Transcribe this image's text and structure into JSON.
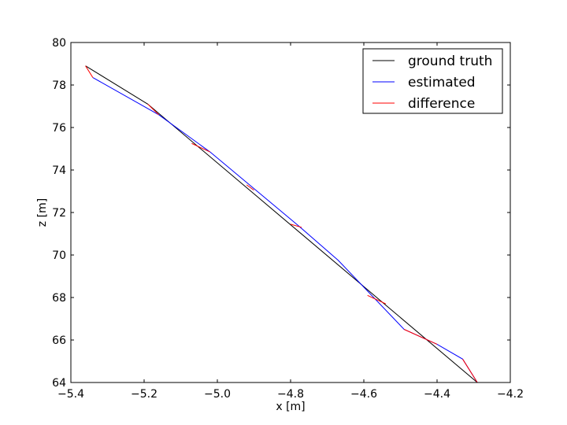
{
  "chart_data": {
    "type": "line",
    "xlabel": "x [m]",
    "ylabel": "z [m]",
    "xlim": [
      -5.4,
      -4.2
    ],
    "ylim": [
      64,
      80
    ],
    "x_ticks": [
      -5.4,
      -5.2,
      -5.0,
      -4.8,
      -4.6,
      -4.4,
      -4.2
    ],
    "x_tick_labels": [
      "−5.4",
      "−5.2",
      "−5.0",
      "−4.8",
      "−4.6",
      "−4.4",
      "−4.2"
    ],
    "y_ticks": [
      64,
      66,
      68,
      70,
      72,
      74,
      76,
      78,
      80
    ],
    "y_tick_labels": [
      "64",
      "66",
      "68",
      "70",
      "72",
      "74",
      "76",
      "78",
      "80"
    ],
    "grid": false,
    "legend_position": "top-right",
    "series": [
      {
        "name": "ground truth",
        "color": "#000000",
        "points": [
          [
            -5.36,
            78.9
          ],
          [
            -5.19,
            77.1
          ],
          [
            -4.29,
            64.0
          ]
        ]
      },
      {
        "name": "estimated",
        "color": "#0000ff",
        "points": [
          [
            -5.34,
            78.35
          ],
          [
            -5.16,
            76.6
          ],
          [
            -5.02,
            74.85
          ],
          [
            -4.78,
            71.4
          ],
          [
            -4.67,
            69.75
          ],
          [
            -4.49,
            66.5
          ],
          [
            -4.4,
            65.8
          ],
          [
            -4.33,
            65.1
          ],
          [
            -4.29,
            64.0
          ]
        ]
      },
      {
        "name": "difference",
        "color": "#ff0000",
        "segments": [
          [
            [
              -5.36,
              78.9
            ],
            [
              -5.34,
              78.35
            ]
          ],
          [
            [
              -5.19,
              77.1
            ],
            [
              -5.16,
              76.6
            ]
          ],
          [
            [
              -5.07,
              75.25
            ],
            [
              -5.02,
              74.85
            ]
          ],
          [
            [
              -4.92,
              73.3
            ],
            [
              -4.9,
              73.05
            ]
          ],
          [
            [
              -4.8,
              71.45
            ],
            [
              -4.77,
              71.3
            ]
          ],
          [
            [
              -4.59,
              68.1
            ],
            [
              -4.54,
              67.7
            ]
          ],
          [
            [
              -4.49,
              66.5
            ],
            [
              -4.4,
              65.8
            ]
          ],
          [
            [
              -4.33,
              65.1
            ],
            [
              -4.29,
              64.0
            ]
          ]
        ]
      }
    ]
  }
}
